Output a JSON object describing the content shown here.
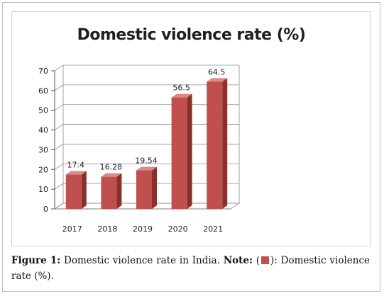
{
  "chart_data": {
    "type": "bar",
    "title": "Domestic violence rate (%)",
    "categories": [
      "2017",
      "2018",
      "2019",
      "2020",
      "2021"
    ],
    "series": [
      {
        "values": [
          17.4,
          16.28,
          19.54,
          56.5,
          64.5
        ]
      }
    ],
    "data_labels": [
      "17.4",
      "16.28",
      "19.54",
      "56.5",
      "64.5"
    ],
    "ylim": [
      0,
      70
    ],
    "yticks": [
      "0",
      "10",
      "20",
      "30",
      "40",
      "50",
      "60",
      "70"
    ],
    "grid": true,
    "bar_color": "#c0504d"
  },
  "caption": {
    "label": "Figure 1:",
    "text": " Domestic violence rate in India. ",
    "note_label": "Note:",
    "note_open": " (",
    "note_close": "): Domestic violence rate (%)."
  }
}
